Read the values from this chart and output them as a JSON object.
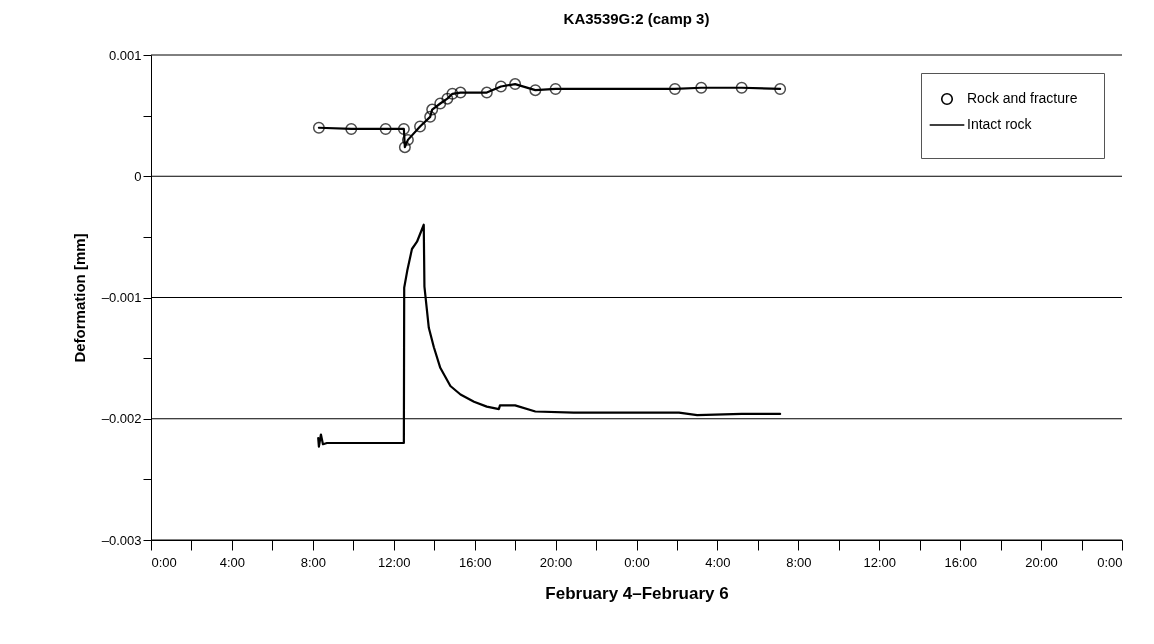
{
  "chart_data": {
    "type": "line",
    "title": "KA3539G:2 (camp 3)",
    "xlabel": "February 4–February 6",
    "ylabel": "Deformation [mm]",
    "xlim": [
      "--02-04T00:00",
      "--02-06T00:00"
    ],
    "xticks": [
      {
        "value": "--02-04T00:00",
        "label": "0:00"
      },
      {
        "value": "--02-04T02:00",
        "label": null
      },
      {
        "value": "--02-04T04:00",
        "label": "4:00"
      },
      {
        "value": "--02-04T06:00",
        "label": null
      },
      {
        "value": "--02-04T08:00",
        "label": "8:00"
      },
      {
        "value": "--02-04T10:00",
        "label": null
      },
      {
        "value": "--02-04T12:00",
        "label": "12:00"
      },
      {
        "value": "--02-04T14:00",
        "label": null
      },
      {
        "value": "--02-04T16:00",
        "label": "16:00"
      },
      {
        "value": "--02-04T18:00",
        "label": null
      },
      {
        "value": "--02-04T20:00",
        "label": "20:00"
      },
      {
        "value": "--02-04T22:00",
        "label": null
      },
      {
        "value": "--02-05T00:00",
        "label": "0:00"
      },
      {
        "value": "--02-05T02:00",
        "label": null
      },
      {
        "value": "--02-05T04:00",
        "label": "4:00"
      },
      {
        "value": "--02-05T06:00",
        "label": null
      },
      {
        "value": "--02-05T08:00",
        "label": "8:00"
      },
      {
        "value": "--02-05T10:00",
        "label": null
      },
      {
        "value": "--02-05T12:00",
        "label": "12:00"
      },
      {
        "value": "--02-05T14:00",
        "label": null
      },
      {
        "value": "--02-05T16:00",
        "label": "16:00"
      },
      {
        "value": "--02-05T18:00",
        "label": null
      },
      {
        "value": "--02-05T20:00",
        "label": "20:00"
      },
      {
        "value": "--02-05T22:00",
        "label": null
      },
      {
        "value": "--02-06T00:00",
        "label": "0:00"
      }
    ],
    "ylim": [
      -0.003,
      0.001
    ],
    "yticks": [
      0.001,
      {
        "value": 0.0005,
        "label": null
      },
      0,
      {
        "value": -0.0005,
        "label": null
      },
      {
        "value": -0.001,
        "label": "–0.001"
      },
      {
        "value": -0.0015,
        "label": null
      },
      {
        "value": -0.002,
        "label": "–0.002"
      },
      {
        "value": -0.0025,
        "label": null
      },
      {
        "value": -0.003,
        "label": "–0.003"
      }
    ],
    "grid": "y",
    "legend": "top right",
    "series": [
      {
        "name": "Rock and fracture",
        "color": "#000000",
        "marker": "circle",
        "x": [
          "--02-04T08:18",
          "--02-04T09:54",
          "--02-04T11:36",
          "--02-04T12:30",
          "--02-04T12:33",
          "--02-04T12:42",
          "--02-04T13:18",
          "--02-04T13:48",
          "--02-04T13:54",
          "--02-04T14:18",
          "--02-04T14:39",
          "--02-04T14:54",
          "--02-04T15:18",
          "--02-04T16:36",
          "--02-04T17:18",
          "--02-04T18:00",
          "--02-04T19:00",
          "--02-04T20:00",
          "--02-05T01:54",
          "--02-05T03:12",
          "--02-05T05:12",
          "--02-05T07:06"
        ],
        "values": [
          0.0004,
          0.00039,
          0.00039,
          0.00039,
          0.00024,
          0.0003,
          0.00041,
          0.00049,
          0.00055,
          0.0006,
          0.00064,
          0.00068,
          0.00069,
          0.00069,
          0.00074,
          0.00076,
          0.00071,
          0.00072,
          0.00072,
          0.00073,
          0.00073,
          0.00072
        ]
      },
      {
        "name": "Intact rock",
        "color": "#000000",
        "marker": "none",
        "x": [
          "--02-04T08:16",
          "--02-04T08:18",
          "--02-04T08:24",
          "--02-04T08:30",
          "--02-04T08:42",
          "--02-04T12:30",
          "--02-04T12:31",
          "--02-04T12:40",
          "--02-04T12:54",
          "--02-04T13:09",
          "--02-04T13:29",
          "--02-04T13:31",
          "--02-04T13:44",
          "--02-04T13:59",
          "--02-04T14:18",
          "--02-04T14:48",
          "--02-04T15:18",
          "--02-04T15:58",
          "--02-04T16:36",
          "--02-04T17:12",
          "--02-04T17:15",
          "--02-04T18:00",
          "--02-04T19:00",
          "--02-04T20:54",
          "--02-05T00:12",
          "--02-05T02:06",
          "--02-05T03:00",
          "--02-05T05:12",
          "--02-05T07:06"
        ],
        "values": [
          -0.00216,
          -0.00223,
          -0.00213,
          -0.00221,
          -0.0022,
          -0.0022,
          -0.00092,
          -0.00078,
          -0.0006,
          -0.00054,
          -0.0004,
          -0.00091,
          -0.00125,
          -0.00141,
          -0.00158,
          -0.00173,
          -0.0018,
          -0.00186,
          -0.0019,
          -0.00192,
          -0.00189,
          -0.00189,
          -0.00194,
          -0.00195,
          -0.00195,
          -0.00195,
          -0.00197,
          -0.00196,
          -0.00196
        ]
      }
    ]
  }
}
